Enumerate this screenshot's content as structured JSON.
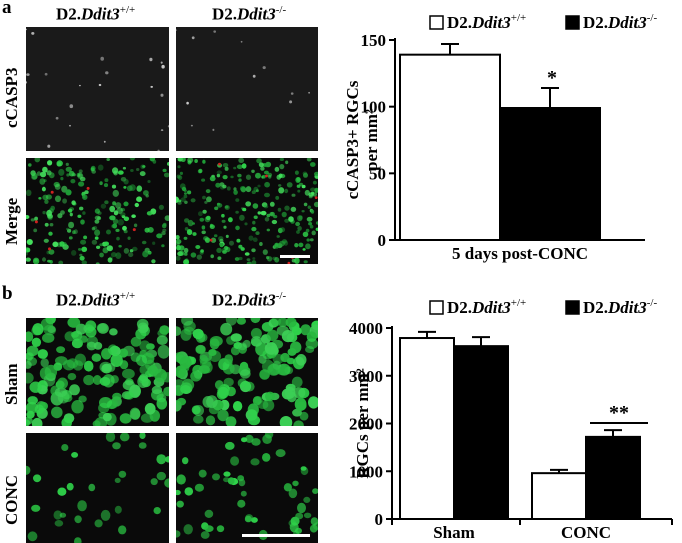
{
  "panel_a": {
    "letter": "a",
    "col_headers": [
      {
        "prefix": "D2.",
        "gene": "Ddit3",
        "sup": "+/+"
      },
      {
        "prefix": "D2.",
        "gene": "Ddit3",
        "sup": "-/-"
      }
    ],
    "row_labels": [
      "cCASP3",
      "Merge"
    ]
  },
  "panel_b": {
    "letter": "b",
    "col_headers": [
      {
        "prefix": "D2.",
        "gene": "Ddit3",
        "sup": "+/+"
      },
      {
        "prefix": "D2.",
        "gene": "Ddit3",
        "sup": "-/-"
      }
    ],
    "row_labels": [
      "Sham",
      "CONC"
    ]
  },
  "colors": {
    "wt_bar": "#ffffff",
    "ko_bar": "#000000",
    "cell_green": "#2fd24a",
    "cell_red": "#d02020"
  },
  "chart_data": [
    {
      "type": "bar",
      "categories": [
        "5 days post-CONC"
      ],
      "series": [
        {
          "name": "D2.Ddit3+/+",
          "values": [
            139
          ],
          "errors": [
            8
          ]
        },
        {
          "name": "D2.Ddit3-/-",
          "values": [
            99
          ],
          "errors": [
            15
          ]
        }
      ],
      "xlabel": "5 days post-CONC",
      "ylabel": "cCASP3+ RGCs per mm²",
      "ylim": [
        0,
        150
      ],
      "yticks": [
        "0",
        "50",
        "100",
        "150"
      ],
      "legend": {
        "items": [
          {
            "prefix": "D2.",
            "gene": "Ddit3",
            "sup": "+/+"
          },
          {
            "prefix": "D2.",
            "gene": "Ddit3",
            "sup": "-/-"
          }
        ],
        "placement": "top"
      },
      "annotations": [
        "*"
      ]
    },
    {
      "type": "bar",
      "categories": [
        "Sham",
        "CONC"
      ],
      "series": [
        {
          "name": "D2.Ddit3+/+",
          "values": [
            3790,
            960
          ],
          "errors": [
            130,
            70
          ]
        },
        {
          "name": "D2.Ddit3-/-",
          "values": [
            3620,
            1720
          ],
          "errors": [
            190,
            140
          ]
        }
      ],
      "ylabel": "RGCs per mm²",
      "ylim": [
        0,
        4000
      ],
      "yticks": [
        "0",
        "1000",
        "2000",
        "3000",
        "4000"
      ],
      "legend": {
        "items": [
          {
            "prefix": "D2.",
            "gene": "Ddit3",
            "sup": "+/+"
          },
          {
            "prefix": "D2.",
            "gene": "Ddit3",
            "sup": "-/-"
          }
        ],
        "placement": "top"
      },
      "annotations": [
        "**"
      ]
    }
  ]
}
